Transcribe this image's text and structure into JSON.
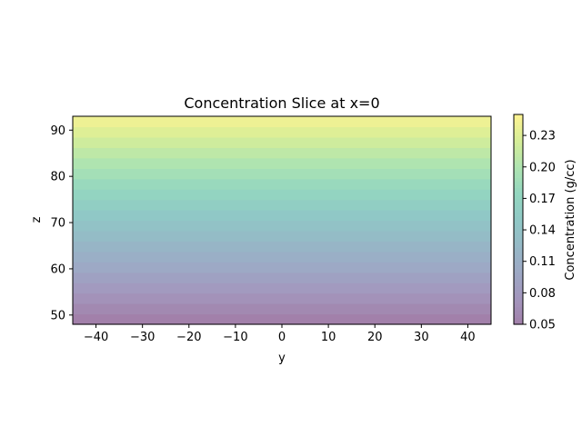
{
  "chart_data": {
    "type": "heatmap",
    "title": "Concentration Slice at x=0",
    "xlabel": "y",
    "ylabel": "z",
    "xlim": [
      -45,
      45
    ],
    "ylim": [
      48,
      93
    ],
    "x_ticks": [
      -40,
      -30,
      -20,
      -10,
      0,
      10,
      20,
      30,
      40
    ],
    "x_tick_labels": [
      "−40",
      "−30",
      "−20",
      "−10",
      "0",
      "10",
      "20",
      "30",
      "40"
    ],
    "y_ticks": [
      50,
      60,
      70,
      80,
      90
    ],
    "y_tick_labels": [
      "50",
      "60",
      "70",
      "80",
      "90"
    ],
    "colorbar": {
      "label": "Concentration (g/cc)",
      "range": [
        0.05,
        0.25
      ],
      "ticks": [
        0.05,
        0.08,
        0.11,
        0.14,
        0.17,
        0.2,
        0.23
      ],
      "tick_labels": [
        "0.05",
        "0.08",
        "0.11",
        "0.14",
        "0.17",
        "0.20",
        "0.23"
      ],
      "colormap": "viridis",
      "alpha": 0.5
    },
    "z_levels": [
      48,
      50.25,
      52.5,
      54.75,
      57,
      59.25,
      61.5,
      63.75,
      66,
      68.25,
      70.5,
      72.75,
      75,
      77.25,
      79.5,
      81.75,
      84,
      86.25,
      88.5,
      90.75,
      93
    ],
    "concentration": [
      0.05,
      0.06,
      0.07,
      0.08,
      0.09,
      0.1,
      0.11,
      0.12,
      0.13,
      0.14,
      0.15,
      0.16,
      0.17,
      0.18,
      0.19,
      0.2,
      0.21,
      0.22,
      0.23,
      0.24
    ]
  }
}
